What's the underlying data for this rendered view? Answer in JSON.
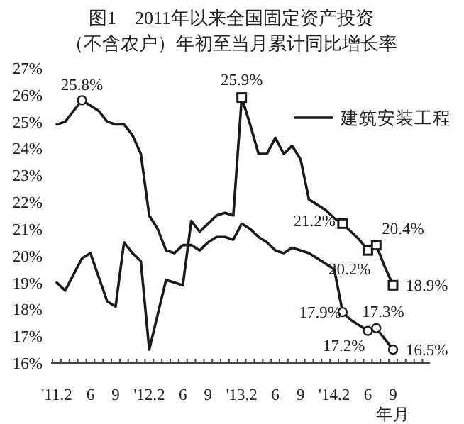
{
  "chart_data": {
    "type": "line",
    "title": "图1　2011年以来全国固定资产投资",
    "subtitle": "（不含农户）年初至当月累计同比增长率",
    "xlabel": "年月",
    "categories": [
      "'11.2",
      null,
      null,
      null,
      "6",
      null,
      null,
      "9",
      null,
      null,
      null,
      "'12.2",
      null,
      null,
      null,
      "6",
      null,
      null,
      "9",
      null,
      null,
      null,
      "'13.2",
      null,
      null,
      null,
      "6",
      null,
      null,
      "9",
      null,
      null,
      null,
      "'14.2",
      null,
      null,
      null,
      "6",
      null,
      null,
      "9"
    ],
    "ylim": [
      16,
      27
    ],
    "yticks": [
      {
        "value": 16,
        "label": "16%"
      },
      {
        "value": 17,
        "label": "17%"
      },
      {
        "value": 18,
        "label": "18%"
      },
      {
        "value": 19,
        "label": "19%"
      },
      {
        "value": 20,
        "label": "20%"
      },
      {
        "value": 21,
        "label": "21%"
      },
      {
        "value": 22,
        "label": "22%"
      },
      {
        "value": 23,
        "label": "23%"
      },
      {
        "value": 24,
        "label": "24%"
      },
      {
        "value": 25,
        "label": "25%"
      },
      {
        "value": 26,
        "label": "26%"
      },
      {
        "value": 27,
        "label": "27%"
      }
    ],
    "legend": "top right",
    "line_style": "solid",
    "series": [
      {
        "color": "#1a1a1a",
        "values": [
          24.9,
          25.0,
          25.4,
          25.8,
          25.6,
          25.4,
          25.0,
          24.9,
          24.9,
          24.5,
          23.8,
          21.5,
          21.0,
          20.2,
          20.1,
          20.4,
          20.4,
          20.2,
          20.5,
          20.7,
          20.7,
          20.6,
          21.2,
          21.0,
          20.7,
          20.5,
          20.2,
          20.1,
          20.3,
          20.2,
          20.1,
          19.9,
          19.7,
          19.5,
          17.9,
          17.6,
          17.4,
          17.2,
          17.3,
          16.9,
          16.5
        ],
        "value_labels": [
          null,
          null,
          null,
          "25.8%",
          null,
          null,
          null,
          null,
          null,
          null,
          null,
          null,
          null,
          null,
          null,
          null,
          null,
          null,
          null,
          null,
          null,
          null,
          null,
          null,
          null,
          null,
          null,
          null,
          null,
          null,
          null,
          null,
          null,
          null,
          "17.9%",
          null,
          null,
          "17.2%",
          "17.3%",
          null,
          "16.5%"
        ]
      },
      {
        "name": "建筑安装工程",
        "color": "#1a1a1a",
        "values": [
          19.0,
          18.7,
          19.3,
          19.9,
          20.1,
          19.2,
          18.3,
          18.1,
          20.5,
          20.1,
          19.8,
          16.5,
          17.8,
          19.1,
          19.0,
          18.9,
          21.3,
          20.9,
          21.2,
          21.5,
          21.6,
          21.5,
          25.9,
          24.9,
          23.8,
          23.8,
          24.4,
          23.8,
          24.1,
          23.6,
          22.1,
          21.9,
          21.7,
          21.4,
          21.2,
          20.9,
          20.6,
          20.2,
          20.4,
          19.6,
          18.9
        ],
        "value_labels": [
          null,
          null,
          null,
          null,
          null,
          null,
          null,
          null,
          null,
          null,
          null,
          null,
          null,
          null,
          null,
          null,
          null,
          null,
          null,
          null,
          null,
          null,
          "25.9%",
          null,
          null,
          null,
          null,
          null,
          null,
          null,
          null,
          null,
          null,
          null,
          "21.2%",
          null,
          null,
          "20.2%",
          "20.4%",
          null,
          "18.9%"
        ]
      }
    ]
  }
}
